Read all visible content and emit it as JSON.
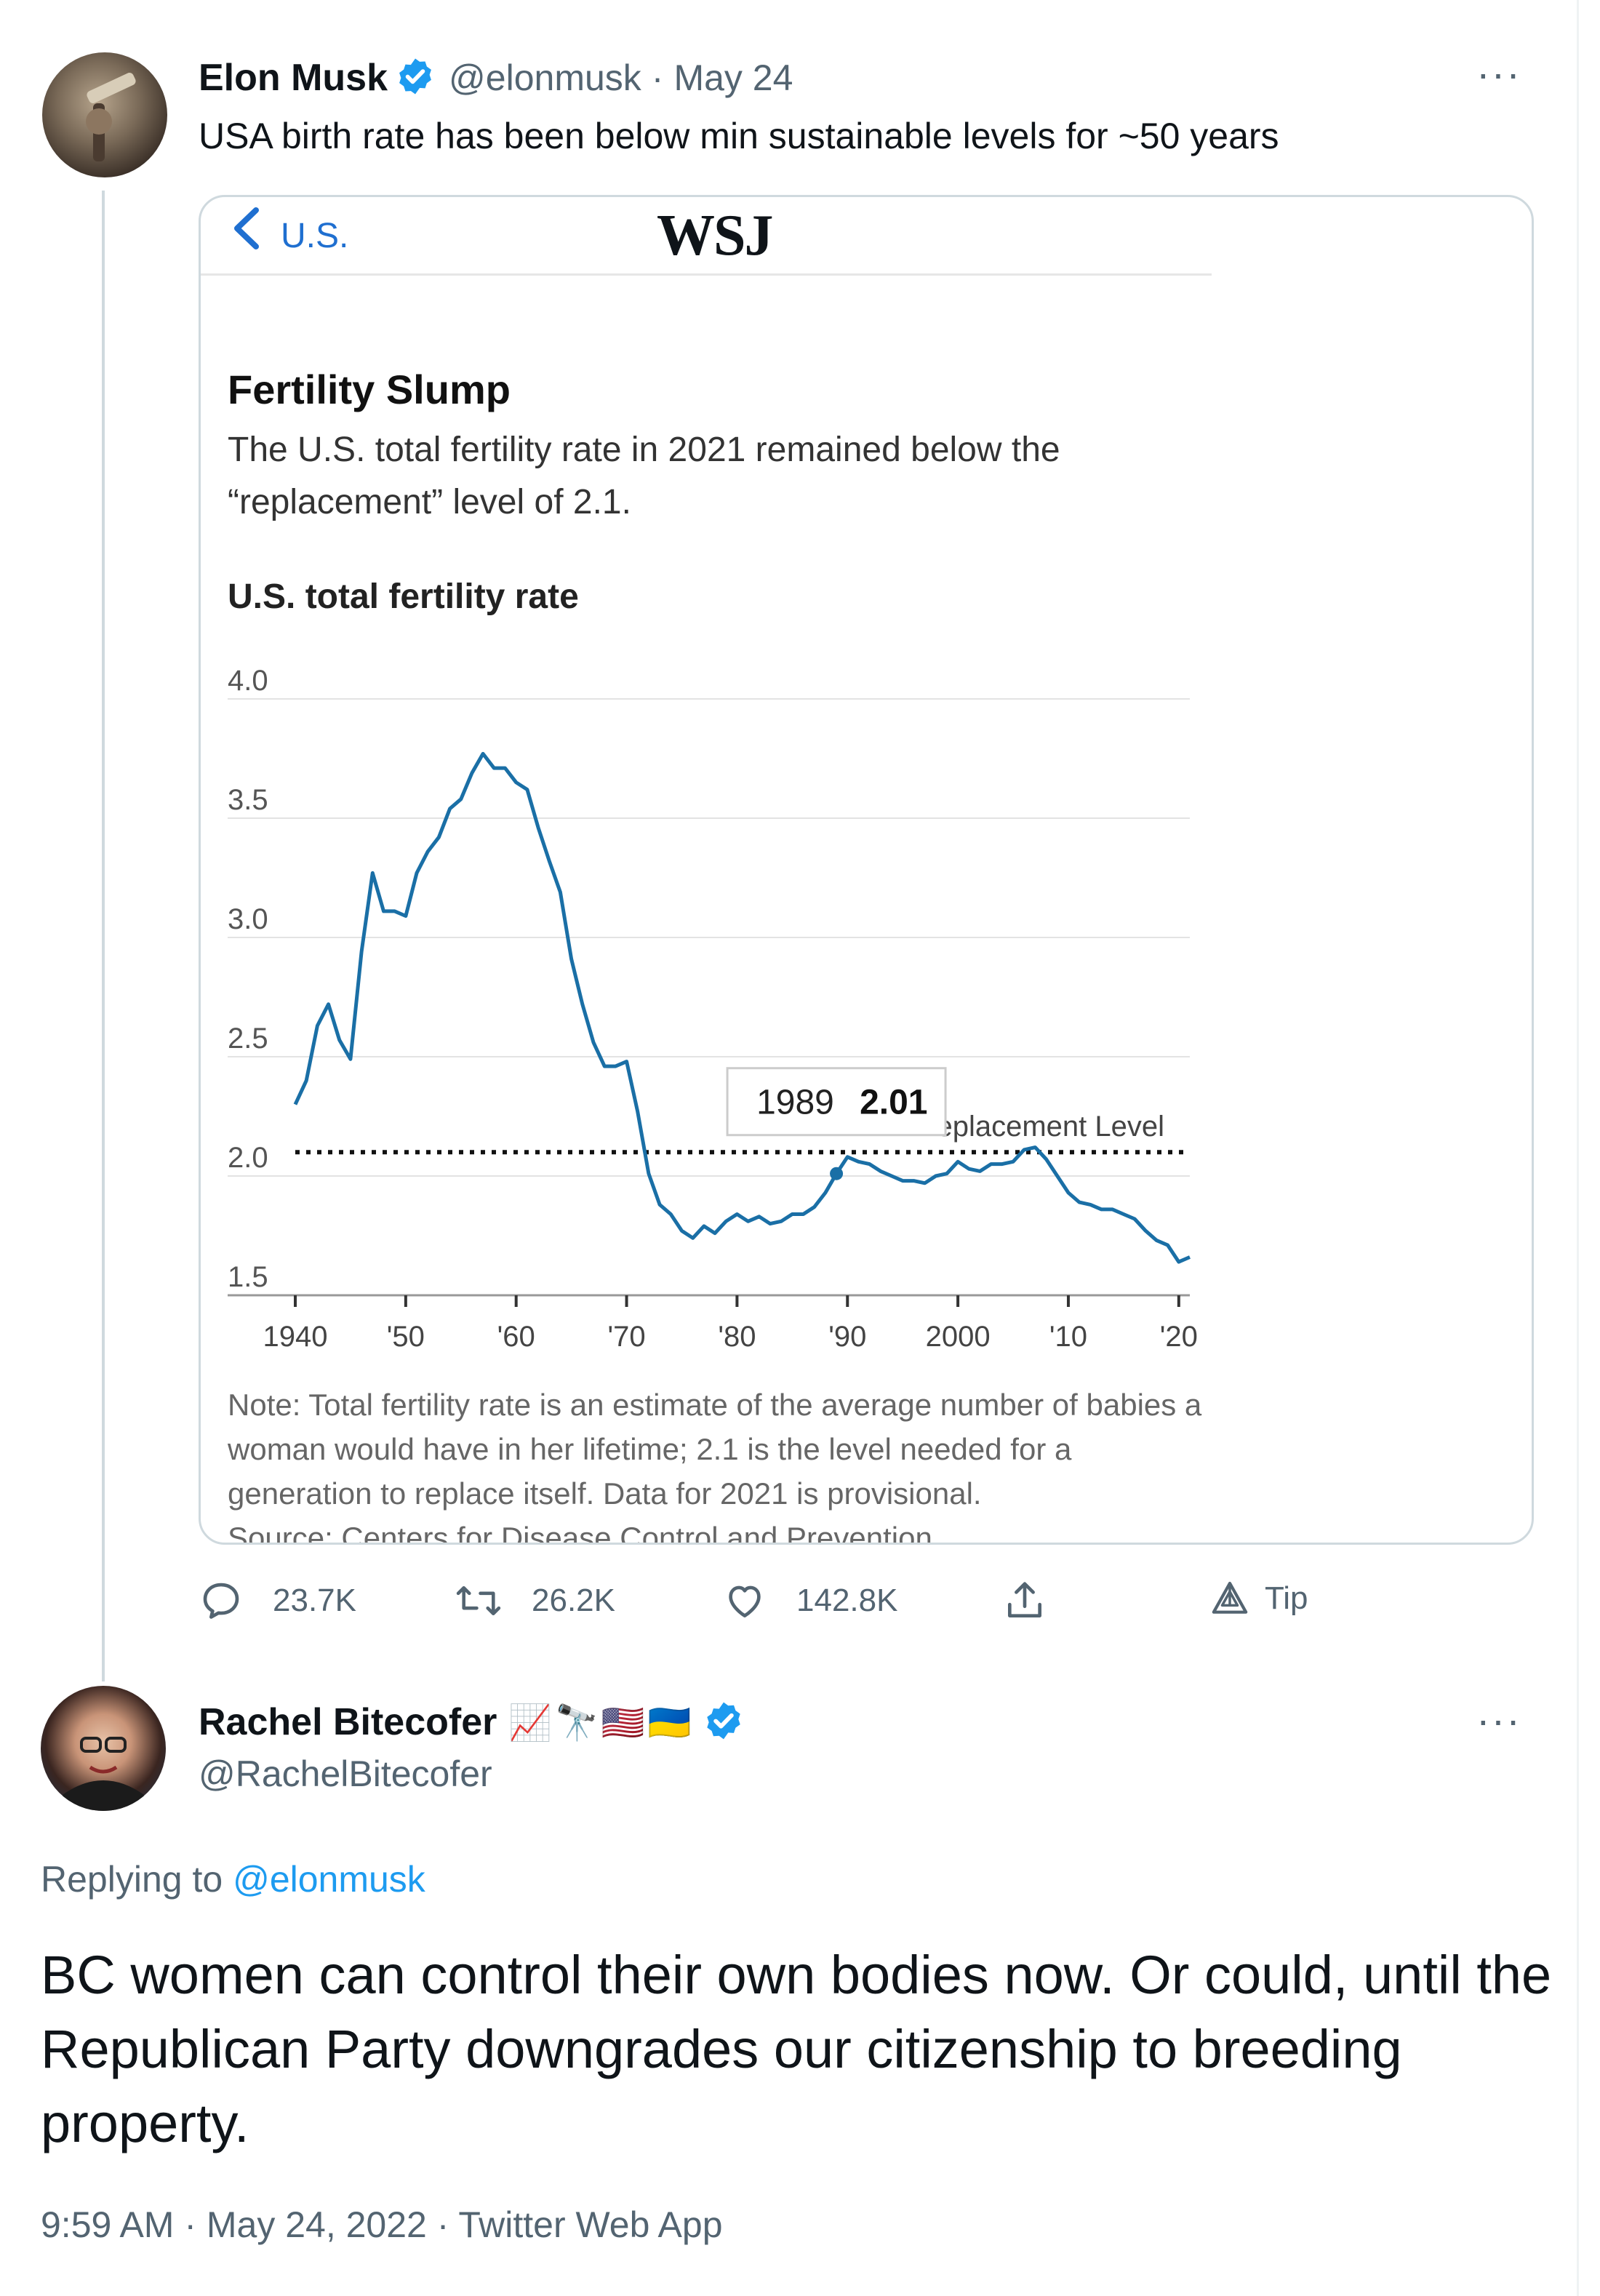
{
  "original_tweet": {
    "author_name": "Elon Musk",
    "handle": "@elonmusk",
    "separator": "·",
    "date": "May 24",
    "more": "···",
    "text": "USA birth rate has been below min sustainable levels for ~50 years"
  },
  "card": {
    "back_label": "U.S.",
    "logo": "WSJ",
    "title": "Fertility Slump",
    "subtitle": "The U.S. total fertility rate in 2021 remained below the “replacement” level of 2.1.",
    "chart_label": "U.S. total fertility rate",
    "note": "Note: Total fertility rate is an estimate of the average number of babies a woman would have in her lifetime; 2.1 is the level needed for a generation to replace itself. Data for 2021 is provisional.",
    "source": "Source: Centers for Disease Control and Prevention"
  },
  "chart_data": {
    "type": "line",
    "title": "U.S. total fertility rate",
    "ylim": [
      1.5,
      4.0
    ],
    "yticks": [
      "4.0",
      "3.5",
      "3.0",
      "2.5",
      "2.0",
      "1.5"
    ],
    "xlim": [
      1940,
      2021
    ],
    "xticks": [
      {
        "value": 1940,
        "label": "1940"
      },
      {
        "value": 1950,
        "label": "'50"
      },
      {
        "value": 1960,
        "label": "'60"
      },
      {
        "value": 1970,
        "label": "'70"
      },
      {
        "value": 1980,
        "label": "'80"
      },
      {
        "value": 1990,
        "label": "'90"
      },
      {
        "value": 2000,
        "label": "2000"
      },
      {
        "value": 2010,
        "label": "'10"
      },
      {
        "value": 2020,
        "label": "'20"
      }
    ],
    "reference_line": {
      "value": 2.1,
      "label": "2.1 Replacement Level"
    },
    "tooltip": {
      "year": "1989",
      "value": "2.01"
    },
    "line_color": "#1a6fa6",
    "series": [
      {
        "x": [
          1940,
          1941,
          1942,
          1943,
          1944,
          1945,
          1946,
          1947,
          1948,
          1949,
          1950,
          1951,
          1952,
          1953,
          1954,
          1955,
          1956,
          1957,
          1958,
          1959,
          1960,
          1961,
          1962,
          1963,
          1964,
          1965,
          1966,
          1967,
          1968,
          1969,
          1970,
          1971,
          1972,
          1973,
          1974,
          1975,
          1976,
          1977,
          1978,
          1979,
          1980,
          1981,
          1982,
          1983,
          1984,
          1985,
          1986,
          1987,
          1988,
          1989,
          1990,
          1991,
          1992,
          1993,
          1994,
          1995,
          1996,
          1997,
          1998,
          1999,
          2000,
          2001,
          2002,
          2003,
          2004,
          2005,
          2006,
          2007,
          2008,
          2009,
          2010,
          2011,
          2012,
          2013,
          2014,
          2015,
          2016,
          2017,
          2018,
          2019,
          2020,
          2021
        ],
        "y": [
          2.3,
          2.4,
          2.63,
          2.72,
          2.57,
          2.49,
          2.94,
          3.27,
          3.11,
          3.11,
          3.09,
          3.27,
          3.36,
          3.42,
          3.54,
          3.58,
          3.69,
          3.77,
          3.71,
          3.71,
          3.65,
          3.62,
          3.46,
          3.32,
          3.19,
          2.91,
          2.72,
          2.56,
          2.46,
          2.46,
          2.48,
          2.27,
          2.01,
          1.88,
          1.84,
          1.77,
          1.74,
          1.79,
          1.76,
          1.81,
          1.84,
          1.81,
          1.83,
          1.8,
          1.81,
          1.84,
          1.84,
          1.87,
          1.93,
          2.01,
          2.08,
          2.06,
          2.05,
          2.02,
          2.0,
          1.98,
          1.98,
          1.97,
          2.0,
          2.01,
          2.06,
          2.03,
          2.02,
          2.05,
          2.05,
          2.06,
          2.11,
          2.12,
          2.07,
          2.0,
          1.93,
          1.89,
          1.88,
          1.86,
          1.86,
          1.84,
          1.82,
          1.77,
          1.73,
          1.71,
          1.64,
          1.66
        ]
      }
    ]
  },
  "actions": {
    "replies": "23.7K",
    "retweets": "26.2K",
    "likes": "142.8K",
    "tip": "Tip"
  },
  "reply_tweet": {
    "author_name": "Rachel Bitecofer",
    "emojis": "📈🔭🇺🇸🇺🇦",
    "handle": "@RachelBitecofer",
    "more": "···",
    "replying_prefix": "Replying to",
    "replying_handle": "@elonmusk",
    "text": "BC women can control their own bodies now. Or could, until the Republican Party downgrades our citizenship to breeding property.",
    "timestamp": "9:59 AM · May 24, 2022 · Twitter Web App"
  },
  "colors": {
    "accent": "#1d9bf0",
    "muted": "#536471",
    "border": "#cfd9de"
  }
}
